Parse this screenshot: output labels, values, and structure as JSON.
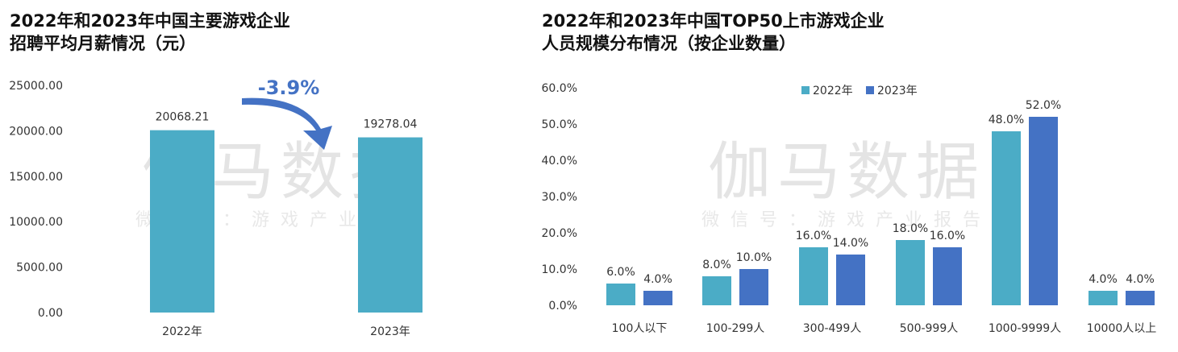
{
  "colors": {
    "year2022": "#4bacc6",
    "year2023": "#4472c4",
    "arrow": "#4472c4"
  },
  "watermark": {
    "main": "伽马数据",
    "sub": "微信号：游戏产业报告"
  },
  "chart_data": [
    {
      "type": "bar",
      "title_lines": [
        "2022年和2023年中国主要游戏企业",
        "招聘平均月薪情况（元）"
      ],
      "categories": [
        "2022年",
        "2023年"
      ],
      "values": [
        20068.21,
        19278.04
      ],
      "value_labels": [
        "20068.21",
        "19278.04"
      ],
      "ylim": [
        0,
        25000
      ],
      "yticks": [
        "0.00",
        "5000.00",
        "10000.00",
        "15000.00",
        "20000.00",
        "25000.00"
      ],
      "change_label": "-3.9%",
      "grid": false
    },
    {
      "type": "bar",
      "title_lines": [
        "2022年和2023年中国TOP50上市游戏企业",
        "人员规模分布情况（按企业数量）"
      ],
      "categories": [
        "100人以下",
        "100-299人",
        "300-499人",
        "500-999人",
        "1000-9999人",
        "10000人以上"
      ],
      "series": [
        {
          "name": "2022年",
          "values": [
            6.0,
            8.0,
            16.0,
            18.0,
            48.0,
            4.0
          ],
          "labels": [
            "6.0%",
            "8.0%",
            "16.0%",
            "18.0%",
            "48.0%",
            "4.0%"
          ]
        },
        {
          "name": "2023年",
          "values": [
            4.0,
            10.0,
            14.0,
            16.0,
            52.0,
            4.0
          ],
          "labels": [
            "4.0%",
            "10.0%",
            "14.0%",
            "16.0%",
            "52.0%",
            "4.0%"
          ]
        }
      ],
      "ylim": [
        0,
        60
      ],
      "yticks": [
        "0.0%",
        "10.0%",
        "20.0%",
        "30.0%",
        "40.0%",
        "50.0%",
        "60.0%"
      ],
      "legend_position": "top",
      "grid": false
    }
  ]
}
